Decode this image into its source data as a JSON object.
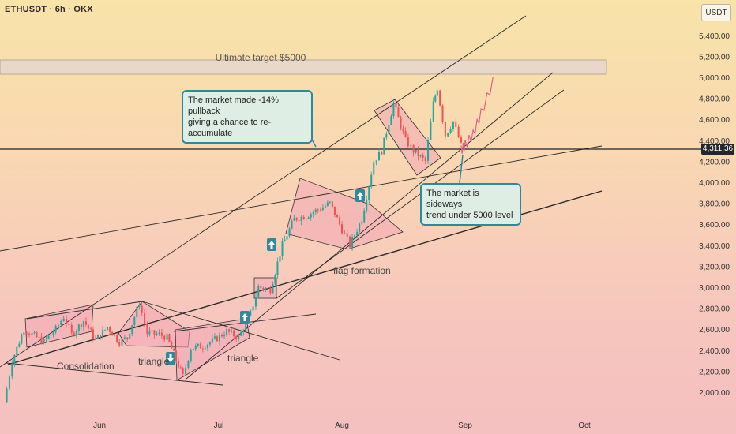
{
  "header": {
    "symbol": "ETHUSDT · 6h · OKX",
    "currency": "USDT"
  },
  "current_price": "4,311.36",
  "annotations": {
    "target": "Ultimate target $5000",
    "callout_pullback": [
      "The market made -14% pullback",
      "giving a chance to re-accumulate"
    ],
    "callout_sideways": [
      "The market is sideways",
      "trend under 5000 level"
    ],
    "consolidation": "Consolidation",
    "triangle_1": "triangle",
    "triangle_2": "triangle",
    "flag": "flag formation"
  },
  "colors": {
    "up": "#26a69a",
    "down": "#ef5350",
    "pattern_fill": "#f3a6b5",
    "target_box": "#e9d8c8",
    "callout_border": "#2b8a9e",
    "arrow_up": "#2b8a9e",
    "path_projection": "#e05d86"
  },
  "icons": [
    "arrow-up-icon",
    "arrow-down-icon"
  ],
  "chart_data": {
    "type": "candlestick",
    "title": "ETHUSDT · 6h · OKX",
    "ylabel": "USDT",
    "y_axis_ticks": [
      "2,000.00",
      "2,200.00",
      "2,400.00",
      "2,600.00",
      "2,800.00",
      "3,000.00",
      "3,200.00",
      "3,400.00",
      "3,600.00",
      "3,800.00",
      "4,000.00",
      "4,200.00",
      "4,400.00",
      "4,600.00",
      "4,800.00",
      "5,000.00",
      "5,200.00",
      "5,400.00"
    ],
    "x_axis_ticks": [
      "Jun",
      "Jul",
      "Aug",
      "Sep",
      "Oct"
    ],
    "ylim": [
      1800,
      5600
    ],
    "close_path": [
      [
        "2025-05-08",
        1900
      ],
      [
        "2025-05-10",
        2300
      ],
      [
        "2025-05-13",
        2600
      ],
      [
        "2025-05-15",
        2550
      ],
      [
        "2025-05-18",
        2480
      ],
      [
        "2025-05-21",
        2600
      ],
      [
        "2025-05-23",
        2720
      ],
      [
        "2025-05-25",
        2550
      ],
      [
        "2025-05-28",
        2680
      ],
      [
        "2025-05-31",
        2500
      ],
      [
        "2025-06-03",
        2620
      ],
      [
        "2025-06-06",
        2480
      ],
      [
        "2025-06-08",
        2520
      ],
      [
        "2025-06-11",
        2850
      ],
      [
        "2025-06-13",
        2560
      ],
      [
        "2025-06-16",
        2550
      ],
      [
        "2025-06-18",
        2520
      ],
      [
        "2025-06-22",
        2150
      ],
      [
        "2025-06-24",
        2420
      ],
      [
        "2025-06-27",
        2440
      ],
      [
        "2025-06-30",
        2500
      ],
      [
        "2025-07-03",
        2580
      ],
      [
        "2025-07-06",
        2520
      ],
      [
        "2025-07-09",
        2750
      ],
      [
        "2025-07-11",
        3000
      ],
      [
        "2025-07-14",
        2980
      ],
      [
        "2025-07-17",
        3400
      ],
      [
        "2025-07-20",
        3650
      ],
      [
        "2025-07-23",
        3680
      ],
      [
        "2025-07-26",
        3740
      ],
      [
        "2025-07-29",
        3800
      ],
      [
        "2025-08-01",
        3550
      ],
      [
        "2025-08-03",
        3400
      ],
      [
        "2025-08-06",
        3650
      ],
      [
        "2025-08-09",
        4200
      ],
      [
        "2025-08-11",
        4300
      ],
      [
        "2025-08-14",
        4750
      ],
      [
        "2025-08-17",
        4400
      ],
      [
        "2025-08-19",
        4300
      ],
      [
        "2025-08-22",
        4200
      ],
      [
        "2025-08-24",
        4750
      ],
      [
        "2025-08-25",
        4900
      ],
      [
        "2025-08-27",
        4450
      ],
      [
        "2025-08-29",
        4580
      ],
      [
        "2025-08-31",
        4350
      ]
    ],
    "projection_path": [
      [
        "2025-09-01",
        4400
      ],
      [
        "2025-09-03",
        4500
      ],
      [
        "2025-09-05",
        4700
      ],
      [
        "2025-09-08",
        5000
      ]
    ],
    "current_price": 4311.36,
    "target_zone": [
      5000,
      5150
    ]
  }
}
